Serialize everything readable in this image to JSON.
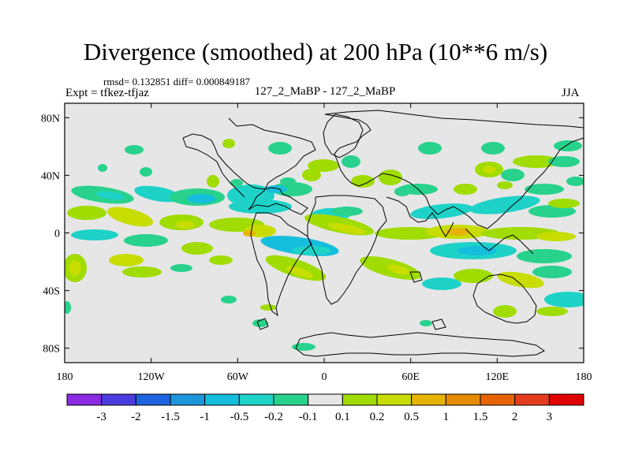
{
  "header": {
    "title": "Divergence (smoothed) at 200 hPa (10**6 m/s)",
    "stats": "rmsd= 0.132851 diff= 0.000849187",
    "experiment": "Expt = tfkez-tfjaz",
    "comparison": "127_2_MaBP - 127_2_MaBP",
    "season": "JJA"
  },
  "map": {
    "background_color": "#e6e6e6",
    "lon_range": [
      -180,
      180
    ],
    "lat_range": [
      -90,
      90
    ],
    "y_ticks": [
      {
        "value": 80,
        "label": "80N"
      },
      {
        "value": 40,
        "label": "40N"
      },
      {
        "value": 0,
        "label": "0"
      },
      {
        "value": -40,
        "label": "40S"
      },
      {
        "value": -80,
        "label": "80S"
      }
    ],
    "x_ticks": [
      {
        "value": -180,
        "label": "180"
      },
      {
        "value": -120,
        "label": "120W"
      },
      {
        "value": -60,
        "label": "60W"
      },
      {
        "value": 0,
        "label": "0"
      },
      {
        "value": 60,
        "label": "60E"
      },
      {
        "value": 120,
        "label": "120E"
      },
      {
        "value": 180,
        "label": "180"
      }
    ]
  },
  "colorbar": {
    "colors": [
      "#8a2be2",
      "#4b3ce0",
      "#1e64e0",
      "#1e96dc",
      "#14bedc",
      "#1ed2c8",
      "#28d28c",
      "#e6e6e6",
      "#a0dc00",
      "#c8dc00",
      "#e6b400",
      "#e68c00",
      "#e66400",
      "#e63c1e",
      "#e00000"
    ],
    "labels": [
      "-3",
      "-2",
      "-1.5",
      "-1",
      "-0.5",
      "-0.2",
      "-0.1",
      "0.1",
      "0.2",
      "0.5",
      "1",
      "1.5",
      "2",
      "3"
    ]
  }
}
